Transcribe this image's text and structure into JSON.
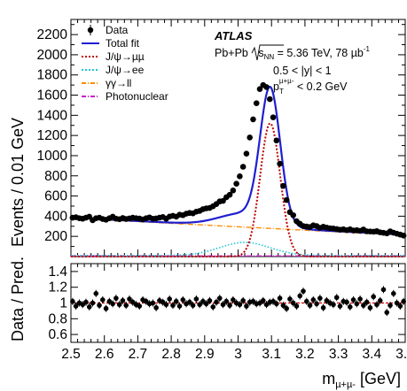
{
  "chart_data": [
    {
      "type": "line",
      "panel": "main",
      "ylabel": "Events / 0.01 GeV",
      "xlim": [
        2.5,
        3.5
      ],
      "ylim": [
        0,
        2350
      ],
      "yticks": [
        200,
        400,
        600,
        800,
        1000,
        1200,
        1400,
        1600,
        1800,
        2000,
        2200
      ],
      "annotations": {
        "experiment": "ATLAS",
        "line1_pre": "Pb+Pb ",
        "line1_sqrt": "s",
        "line1_sub": "NN",
        "line1_post": " = 5.36 TeV, 78 µb",
        "line1_sup": "-1",
        "line2": "0.5 < |y| < 1",
        "line3_p": "p",
        "line3_sub": "T",
        "line3_sup": "µ+µ-",
        "line3_post": " < 0.2 GeV"
      },
      "legend_position": "top-left",
      "series": [
        {
          "name": "Data",
          "style": "markers",
          "color": "#000000",
          "x": [
            2.505,
            2.515,
            2.525,
            2.535,
            2.545,
            2.555,
            2.565,
            2.575,
            2.585,
            2.595,
            2.605,
            2.615,
            2.625,
            2.635,
            2.645,
            2.655,
            2.665,
            2.675,
            2.685,
            2.695,
            2.705,
            2.715,
            2.725,
            2.735,
            2.745,
            2.755,
            2.765,
            2.775,
            2.785,
            2.795,
            2.805,
            2.815,
            2.825,
            2.835,
            2.845,
            2.855,
            2.865,
            2.875,
            2.885,
            2.895,
            2.905,
            2.915,
            2.925,
            2.935,
            2.945,
            2.955,
            2.965,
            2.975,
            2.985,
            2.995,
            3.005,
            3.015,
            3.025,
            3.035,
            3.045,
            3.055,
            3.065,
            3.075,
            3.085,
            3.095,
            3.105,
            3.115,
            3.125,
            3.135,
            3.145,
            3.155,
            3.165,
            3.175,
            3.185,
            3.195,
            3.205,
            3.215,
            3.225,
            3.235,
            3.245,
            3.255,
            3.265,
            3.275,
            3.285,
            3.295,
            3.305,
            3.315,
            3.325,
            3.335,
            3.345,
            3.355,
            3.365,
            3.375,
            3.385,
            3.395,
            3.405,
            3.415,
            3.425,
            3.435,
            3.445,
            3.455,
            3.465,
            3.475,
            3.485,
            3.495
          ],
          "y": [
            385,
            390,
            380,
            375,
            385,
            395,
            360,
            380,
            385,
            372,
            365,
            380,
            395,
            375,
            370,
            382,
            372,
            378,
            385,
            380,
            377,
            368,
            380,
            388,
            374,
            378,
            385,
            392,
            375,
            396,
            404,
            395,
            415,
            410,
            425,
            432,
            428,
            445,
            452,
            470,
            478,
            482,
            498,
            520,
            546,
            552,
            588,
            612,
            655,
            722,
            795,
            890,
            1020,
            1180,
            1360,
            1520,
            1660,
            1700,
            1680,
            1560,
            1380,
            1150,
            920,
            700,
            560,
            440,
            410,
            350,
            325,
            302,
            298,
            292,
            310,
            302,
            285,
            295,
            287,
            280,
            278,
            272,
            266,
            270,
            262,
            270,
            258,
            262,
            255,
            268,
            250,
            248,
            246,
            252,
            240,
            235,
            230,
            250,
            236,
            226,
            218,
            208
          ]
        },
        {
          "name": "Total fit",
          "style": "line",
          "color": "#1f1fd0"
        },
        {
          "name": "J/ψ→µµ",
          "style": "dotted",
          "color": "#c00000"
        },
        {
          "name": "J/ψ→ee",
          "style": "dotted",
          "color": "#22c4d6"
        },
        {
          "name": "γγ→ll",
          "style": "dashdot",
          "color": "#ff8c00"
        },
        {
          "name": "Photonuclear",
          "style": "dashdot",
          "color": "#c71fc7"
        }
      ]
    },
    {
      "type": "scatter",
      "panel": "ratio",
      "ylabel": "Data / Pred.",
      "xlabel": "m",
      "xlabel_sub": "µ+µ-",
      "xlabel_unit": " [GeV]",
      "xlim": [
        2.5,
        3.5
      ],
      "ylim": [
        0.5,
        1.5
      ],
      "yticks": [
        0.6,
        0.8,
        1,
        1.2,
        1.4
      ],
      "xticks": [
        2.5,
        2.6,
        2.7,
        2.8,
        2.9,
        3,
        3.1,
        3.2,
        3.3,
        3.4,
        3.5
      ],
      "reference_line": 1,
      "y": [
        1.02,
        0.96,
        1.0,
        0.98,
        1.01,
        0.95,
        1.0,
        1.12,
        0.97,
        1.04,
        0.93,
        1.02,
        0.99,
        1.06,
        0.98,
        1.03,
        0.97,
        1.05,
        1.01,
        0.98,
        0.96,
        1.04,
        1.02,
        0.99,
        1.0,
        0.94,
        1.03,
        1.01,
        0.98,
        1.05,
        0.97,
        1.02,
        0.96,
        1.04,
        0.99,
        1.01,
        0.97,
        1.05,
        0.98,
        1.02,
        0.99,
        1.03,
        0.95,
        1.01,
        1.06,
        0.98,
        1.02,
        0.97,
        1.04,
        1.0,
        0.98,
        1.03,
        0.96,
        1.01,
        1.02,
        0.99,
        1.0,
        1.03,
        0.98,
        1.01,
        1.02,
        0.99,
        1.06,
        0.97,
        0.93,
        1.05,
        1.0,
        0.96,
        1.09,
        1.15,
        1.02,
        0.97,
        1.04,
        0.99,
        1.06,
        0.94,
        1.03,
        1.0,
        0.98,
        1.07,
        0.96,
        1.02,
        1.01,
        0.95,
        1.04,
        0.99,
        1.05,
        0.97,
        1.01,
        0.94,
        1.08,
        0.98,
        1.03,
        1.17,
        0.88,
        0.97,
        1.12,
        1.0,
        0.96,
        1.02
      ]
    }
  ]
}
